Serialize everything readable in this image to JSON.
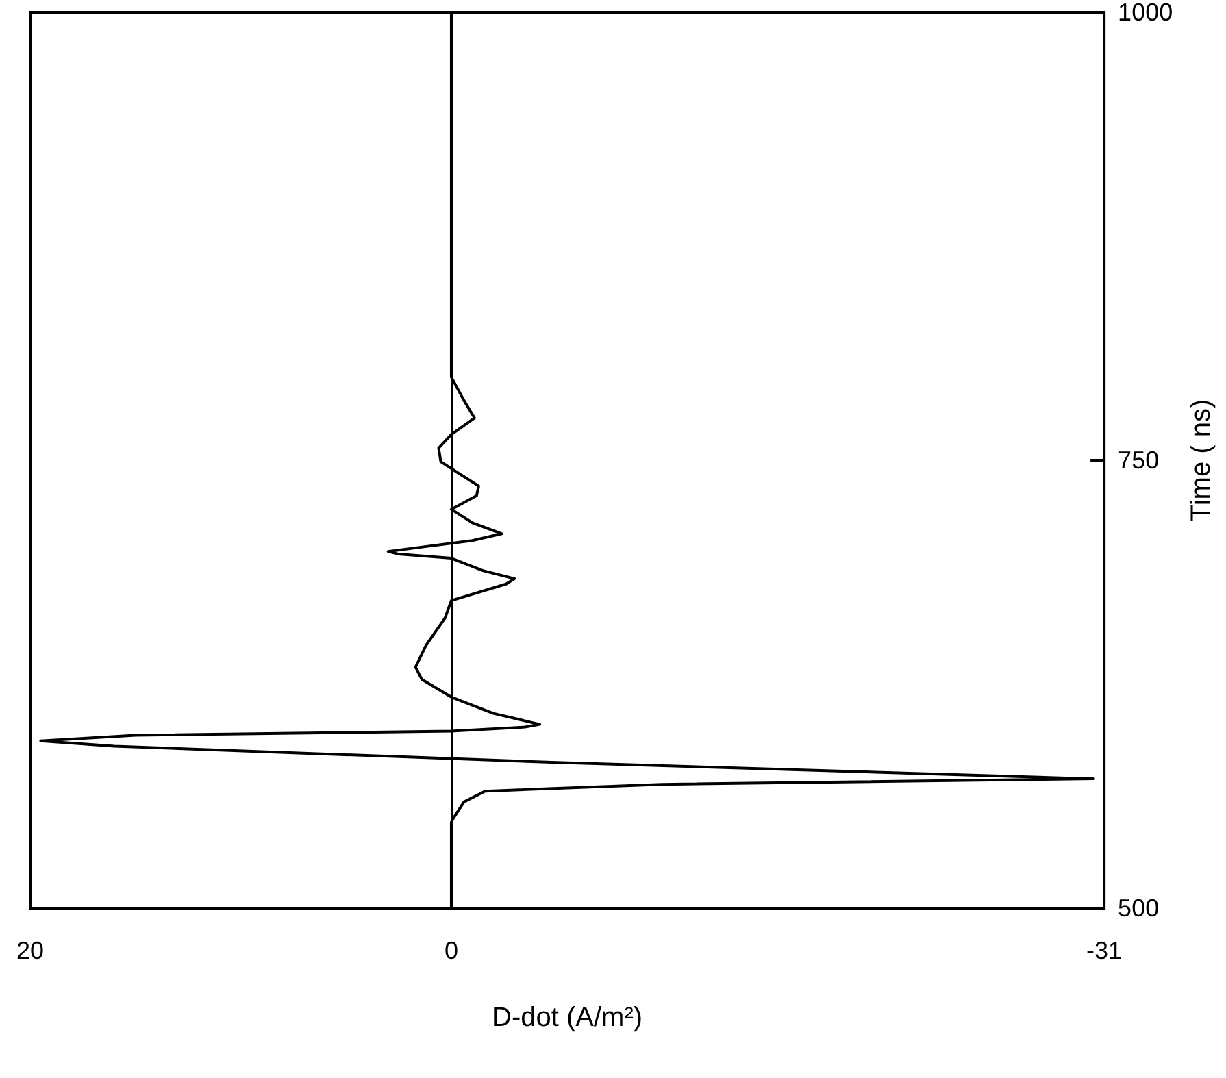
{
  "chart_data": {
    "type": "line",
    "xlabel": "D-dot (A/m²)",
    "ylabel": "Time ( ns)",
    "series": [
      {
        "color": "#000000",
        "x": [
          0,
          0,
          -0.1,
          -0.6,
          -1.6,
          -10,
          -30.5,
          -5,
          16,
          19.5,
          15,
          0,
          -3.5,
          -4.2,
          -2,
          0,
          1.4,
          1.7,
          1.2,
          0.3,
          0,
          -2.6,
          -3,
          -1.5,
          0,
          2.5,
          3,
          1.5,
          -1,
          -2.4,
          -1,
          0,
          -1.2,
          -1.3,
          -0.5,
          0.5,
          0.6,
          0,
          -1.1,
          -0.6,
          0,
          0
        ],
        "values": [
          500,
          547.9,
          550.2,
          559.3,
          565.3,
          569.1,
          572.2,
          581.3,
          590.4,
          593.4,
          596.5,
          598.8,
          601.1,
          602.6,
          608.7,
          617.8,
          627.7,
          634.5,
          646.7,
          661.9,
          671.7,
          680.9,
          683.9,
          688.4,
          695.3,
          697.6,
          699.1,
          701.4,
          705.2,
          709,
          715.1,
          722.6,
          730.2,
          735.6,
          741.6,
          749.2,
          756.8,
          764.4,
          773.6,
          783.4,
          796.4,
          1000
        ]
      }
    ],
    "xlim": [
      20,
      -31
    ],
    "xticks": [
      20,
      0,
      -31
    ],
    "ylim": [
      500,
      1000
    ],
    "yticks": [
      500,
      750,
      1000
    ],
    "ref_lines": [
      {
        "axis": "x",
        "value": 0,
        "color": "#000000"
      }
    ],
    "grid": false,
    "marker": "none",
    "line_style": "solid"
  }
}
